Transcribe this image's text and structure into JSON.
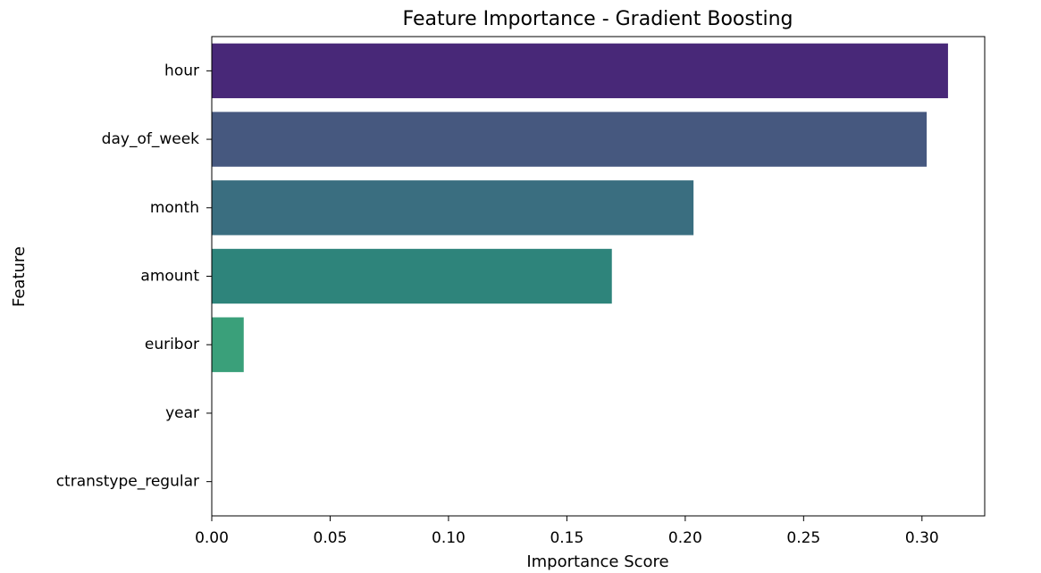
{
  "chart_data": {
    "type": "bar",
    "orientation": "horizontal",
    "title": "Feature Importance - Gradient Boosting",
    "xlabel": "Importance Score",
    "ylabel": "Feature",
    "categories": [
      "hour",
      "day_of_week",
      "month",
      "amount",
      "euribor",
      "year",
      "ctranstype_regular"
    ],
    "values": [
      0.311,
      0.302,
      0.2035,
      0.169,
      0.0135,
      0.0,
      0.0
    ],
    "colors": [
      "#482878",
      "#46587f",
      "#3a6e80",
      "#2e847b",
      "#3aa07a",
      "#6cc35a",
      "#b4dd2c"
    ],
    "xlim": [
      0,
      0.3265
    ],
    "xticks": [
      "0.00",
      "0.05",
      "0.10",
      "0.15",
      "0.20",
      "0.25",
      "0.30"
    ],
    "xtick_values": [
      0,
      0.05,
      0.1,
      0.15,
      0.2,
      0.25,
      0.3
    ],
    "grid": false,
    "legend": "none"
  }
}
